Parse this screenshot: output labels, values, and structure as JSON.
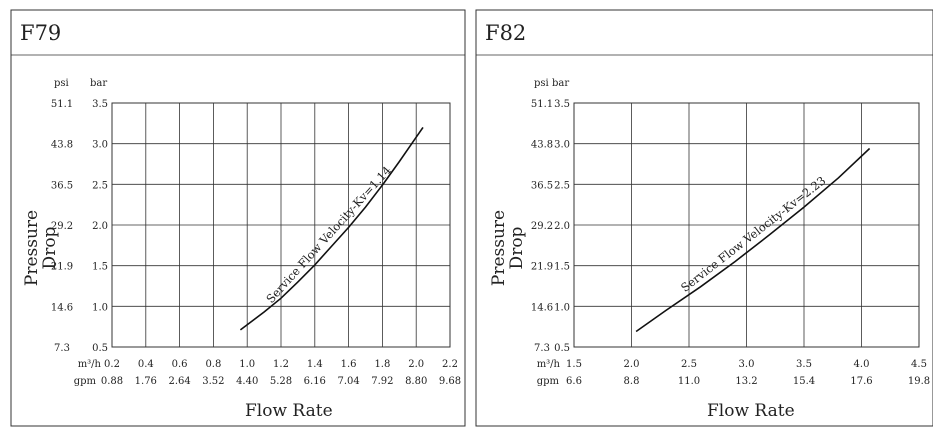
{
  "chart_data": [
    {
      "type": "line",
      "title": "F79",
      "xlabel": "Flow Rate",
      "ylabel": "Pressure Drop",
      "ylabel_lines": [
        "Pressure",
        "Drop"
      ],
      "x_units": {
        "primary": "m³/h",
        "secondary": "gpm"
      },
      "y_units": {
        "primary": "bar",
        "secondary": "psi"
      },
      "x_ticks": [
        "0.2",
        "0.4",
        "0.6",
        "0.8",
        "1.0",
        "1.2",
        "1.4",
        "1.6",
        "1.8",
        "2.0",
        "2.2"
      ],
      "x_ticks_gpm": [
        "0.88",
        "1.76",
        "2.64",
        "3.52",
        "4.40",
        "5.28",
        "6.16",
        "7.04",
        "7.92",
        "8.80",
        "9.68"
      ],
      "xlim": [
        0.2,
        2.2
      ],
      "y_ticks_bar": [
        "0.5",
        "1.0",
        "1.5",
        "2.0",
        "2.5",
        "3.0",
        "3.5"
      ],
      "y_ticks_psi": [
        "7.3",
        "14.6",
        "21.9",
        "29.2",
        "36.5",
        "43.8",
        "51.1"
      ],
      "ylim": [
        0.5,
        3.5
      ],
      "grid": true,
      "series": [
        {
          "x": [
            0.96,
            1.1,
            1.2,
            1.3,
            1.4,
            1.5,
            1.6,
            1.7,
            1.8,
            1.9,
            2.0,
            2.04
          ],
          "y": [
            0.71,
            0.93,
            1.1,
            1.3,
            1.51,
            1.74,
            1.97,
            2.22,
            2.49,
            2.78,
            3.08,
            3.2
          ]
        }
      ],
      "annotation": {
        "text": "Service Flow Velocity-Kv=1.14",
        "x": 1.5,
        "y": 1.8
      }
    },
    {
      "type": "line",
      "title": "F82",
      "xlabel": "Flow Rate",
      "ylabel": "Pressure Drop",
      "ylabel_lines": [
        "Pressure",
        "Drop"
      ],
      "x_units": {
        "primary": "m³/h",
        "secondary": "gpm"
      },
      "y_units": {
        "primary": "bar",
        "secondary": "psi"
      },
      "x_ticks": [
        "1.5",
        "2.0",
        "2.5",
        "3.0",
        "3.5",
        "4.0",
        "4.5"
      ],
      "x_ticks_gpm": [
        "6.6",
        "8.8",
        "11.0",
        "13.2",
        "15.4",
        "17.6",
        "19.8"
      ],
      "xlim": [
        1.5,
        4.5
      ],
      "y_ticks_bar": [
        "0.5",
        "1.0",
        "1.5",
        "2.0",
        "2.5",
        "3.0",
        "3.5"
      ],
      "y_ticks_psi": [
        "7.3",
        "14.6",
        "21.9",
        "29.2",
        "36.5",
        "43.8",
        "51.1"
      ],
      "ylim": [
        0.5,
        3.5
      ],
      "grid": true,
      "series": [
        {
          "x": [
            2.04,
            2.3,
            2.6,
            2.9,
            3.2,
            3.5,
            3.8,
            4.07
          ],
          "y": [
            0.69,
            0.95,
            1.24,
            1.55,
            1.88,
            2.22,
            2.58,
            2.94
          ]
        }
      ],
      "annotation": {
        "text": "Service Flow Velocity-Kv=2.23",
        "x": 3.08,
        "y": 1.8
      }
    }
  ]
}
